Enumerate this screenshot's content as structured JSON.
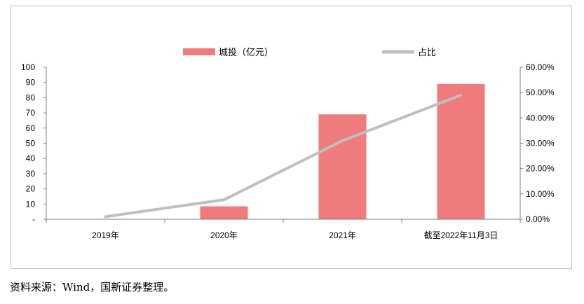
{
  "chart_data": {
    "type": "bar",
    "categories": [
      "2019年",
      "2020年",
      "2021年",
      "截至2022年11月3日"
    ],
    "series": [
      {
        "name": "城投（亿元）",
        "type": "bar",
        "axis": "left",
        "values": [
          0.2,
          8.5,
          69,
          89
        ],
        "color": "#f07b7d"
      },
      {
        "name": "占比",
        "type": "line",
        "axis": "right",
        "values": [
          0.01,
          0.077,
          0.31,
          0.49
        ],
        "color": "#bfbfbf"
      }
    ],
    "y_left": {
      "ylim": [
        0,
        100
      ],
      "ticks": [
        "-",
        "10",
        "20",
        "30",
        "40",
        "50",
        "60",
        "70",
        "80",
        "90",
        "100"
      ]
    },
    "y_right": {
      "ylim": [
        0,
        0.6
      ],
      "ticks": [
        "0.00%",
        "10.00%",
        "20.00%",
        "30.00%",
        "40.00%",
        "50.00%",
        "60.00%"
      ]
    },
    "legend": "top-center",
    "grid": false
  },
  "source_note": "资料来源：Wind，国新证券整理。"
}
